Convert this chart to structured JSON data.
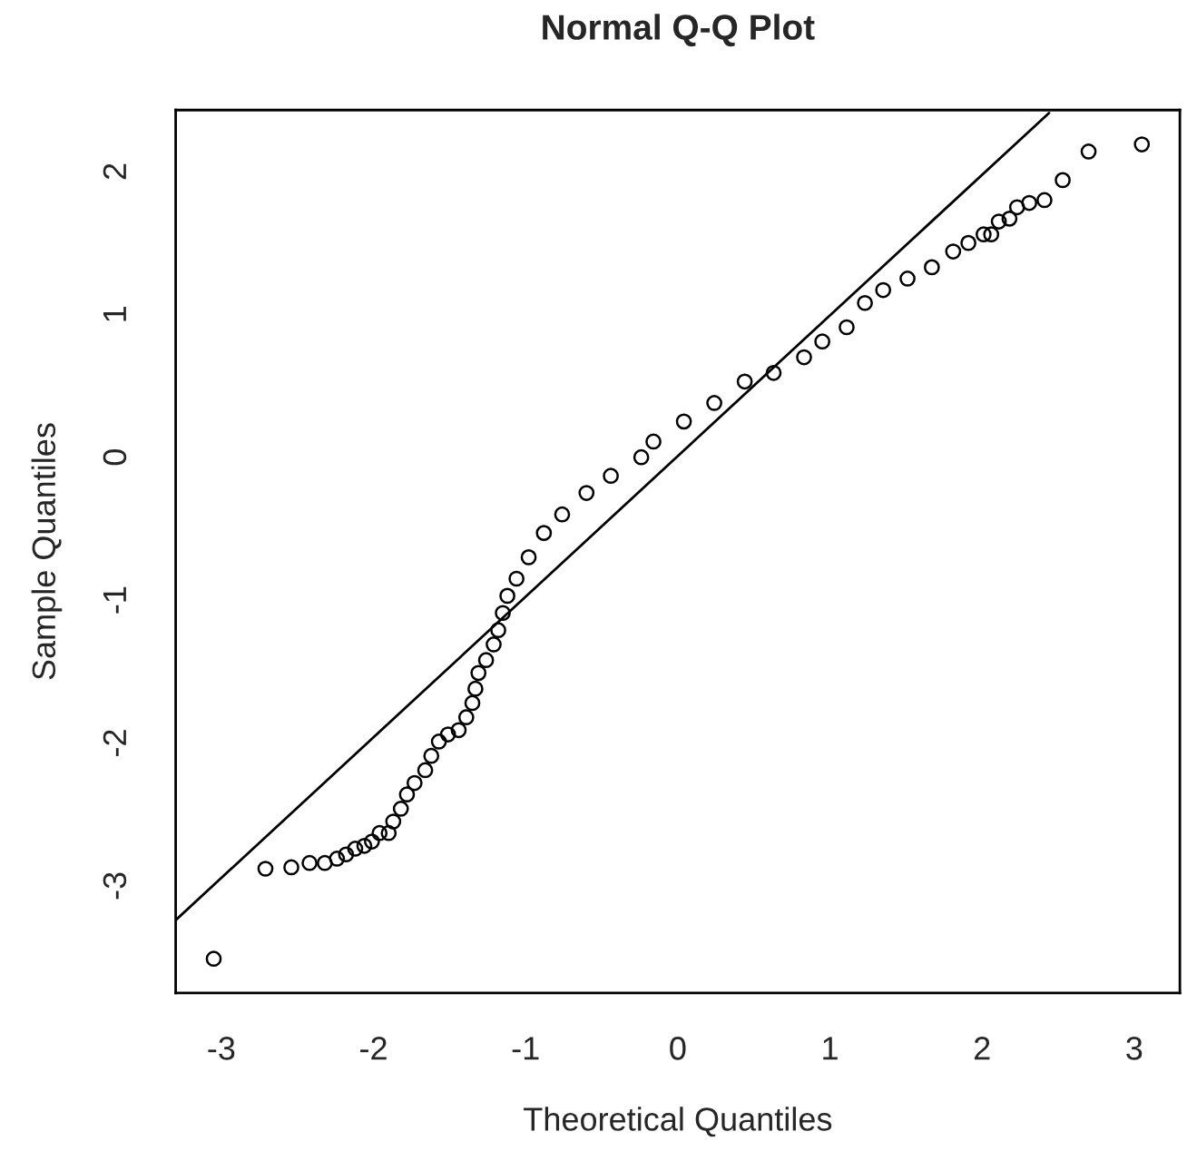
{
  "chart_data": {
    "type": "scatter",
    "title": "Normal Q-Q Plot",
    "xlabel": "Theoretical Quantiles",
    "ylabel": "Sample Quantiles",
    "xlim": [
      -3.3,
      3.3
    ],
    "ylim": [
      -3.75,
      2.43
    ],
    "xticks": [
      -3,
      -2,
      -1,
      0,
      1,
      2,
      3
    ],
    "yticks": [
      -3,
      -2,
      -1,
      0,
      1,
      2
    ],
    "grid": false,
    "legend": false,
    "series": [
      {
        "marker": "circle",
        "color": "#000000",
        "x": [
          -3.05,
          -2.71,
          -2.54,
          -2.42,
          -2.32,
          -2.24,
          -2.18,
          -2.12,
          -2.06,
          -2.01,
          -1.96,
          -1.9,
          -1.87,
          -1.82,
          -1.78,
          -1.73,
          -1.66,
          -1.62,
          -1.57,
          -1.51,
          -1.44,
          -1.39,
          -1.35,
          -1.33,
          -1.31,
          -1.26,
          -1.21,
          -1.18,
          -1.15,
          -1.12,
          -1.06,
          -0.98,
          -0.88,
          -0.76,
          -0.6,
          -0.44,
          -0.24,
          -0.16,
          0.04,
          0.24,
          0.44,
          0.63,
          0.83,
          0.95,
          1.11,
          1.23,
          1.35,
          1.51,
          1.67,
          1.81,
          1.91,
          2.01,
          2.06,
          2.11,
          2.18,
          2.23,
          2.31,
          2.41,
          2.53,
          2.7,
          3.05
        ],
        "values": [
          -3.51,
          -2.88,
          -2.87,
          -2.84,
          -2.84,
          -2.81,
          -2.78,
          -2.74,
          -2.72,
          -2.69,
          -2.63,
          -2.63,
          -2.55,
          -2.46,
          -2.36,
          -2.28,
          -2.19,
          -2.09,
          -1.99,
          -1.94,
          -1.91,
          -1.82,
          -1.72,
          -1.62,
          -1.51,
          -1.42,
          -1.31,
          -1.21,
          -1.09,
          -0.97,
          -0.85,
          -0.7,
          -0.53,
          -0.4,
          -0.25,
          -0.13,
          0.0,
          0.11,
          0.25,
          0.38,
          0.53,
          0.59,
          0.7,
          0.81,
          0.91,
          1.08,
          1.17,
          1.25,
          1.33,
          1.44,
          1.5,
          1.56,
          1.56,
          1.65,
          1.67,
          1.75,
          1.78,
          1.8,
          1.94,
          2.14,
          2.19
        ]
      },
      {
        "type": "line",
        "color": "#000000",
        "line_style": "solid",
        "x": [
          -3.3,
          2.44
        ],
        "values": [
          -3.24,
          2.41
        ]
      }
    ]
  }
}
